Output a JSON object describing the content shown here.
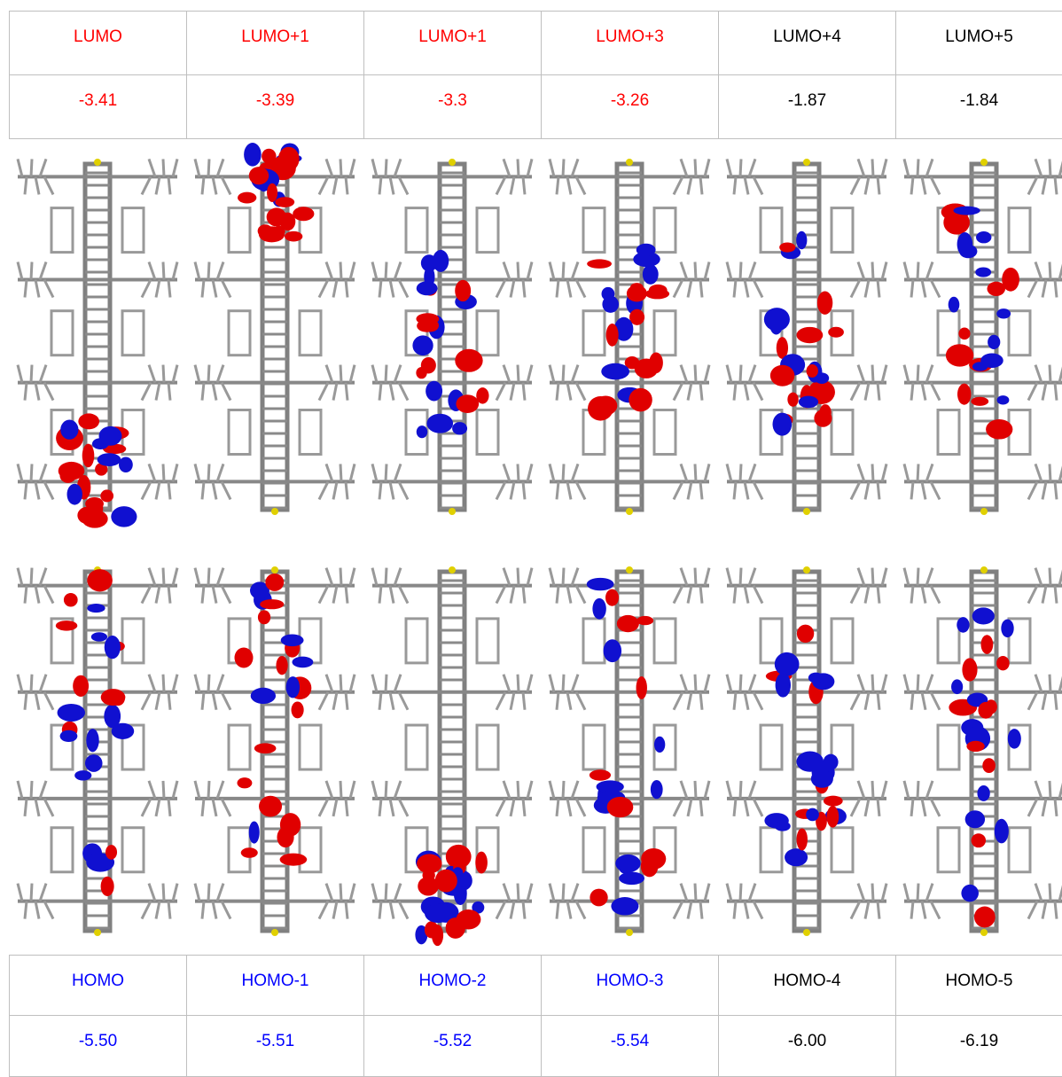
{
  "top": {
    "labels": [
      "LUMO",
      "LUMO+1",
      "LUMO+1",
      "LUMO+3",
      "LUMO+4",
      "LUMO+5"
    ],
    "values": [
      "-3.41",
      "-3.39",
      "-3.3",
      "-3.26",
      "-1.87",
      "-1.84"
    ]
  },
  "bottom": {
    "labels": [
      "HOMO",
      "HOMO-1",
      "HOMO-2",
      "HOMO-3",
      "HOMO-4",
      "HOMO-5"
    ],
    "values": [
      "-5.50",
      "-5.51",
      "-5.52",
      "-5.54",
      "-6.00",
      "-6.19"
    ]
  }
}
